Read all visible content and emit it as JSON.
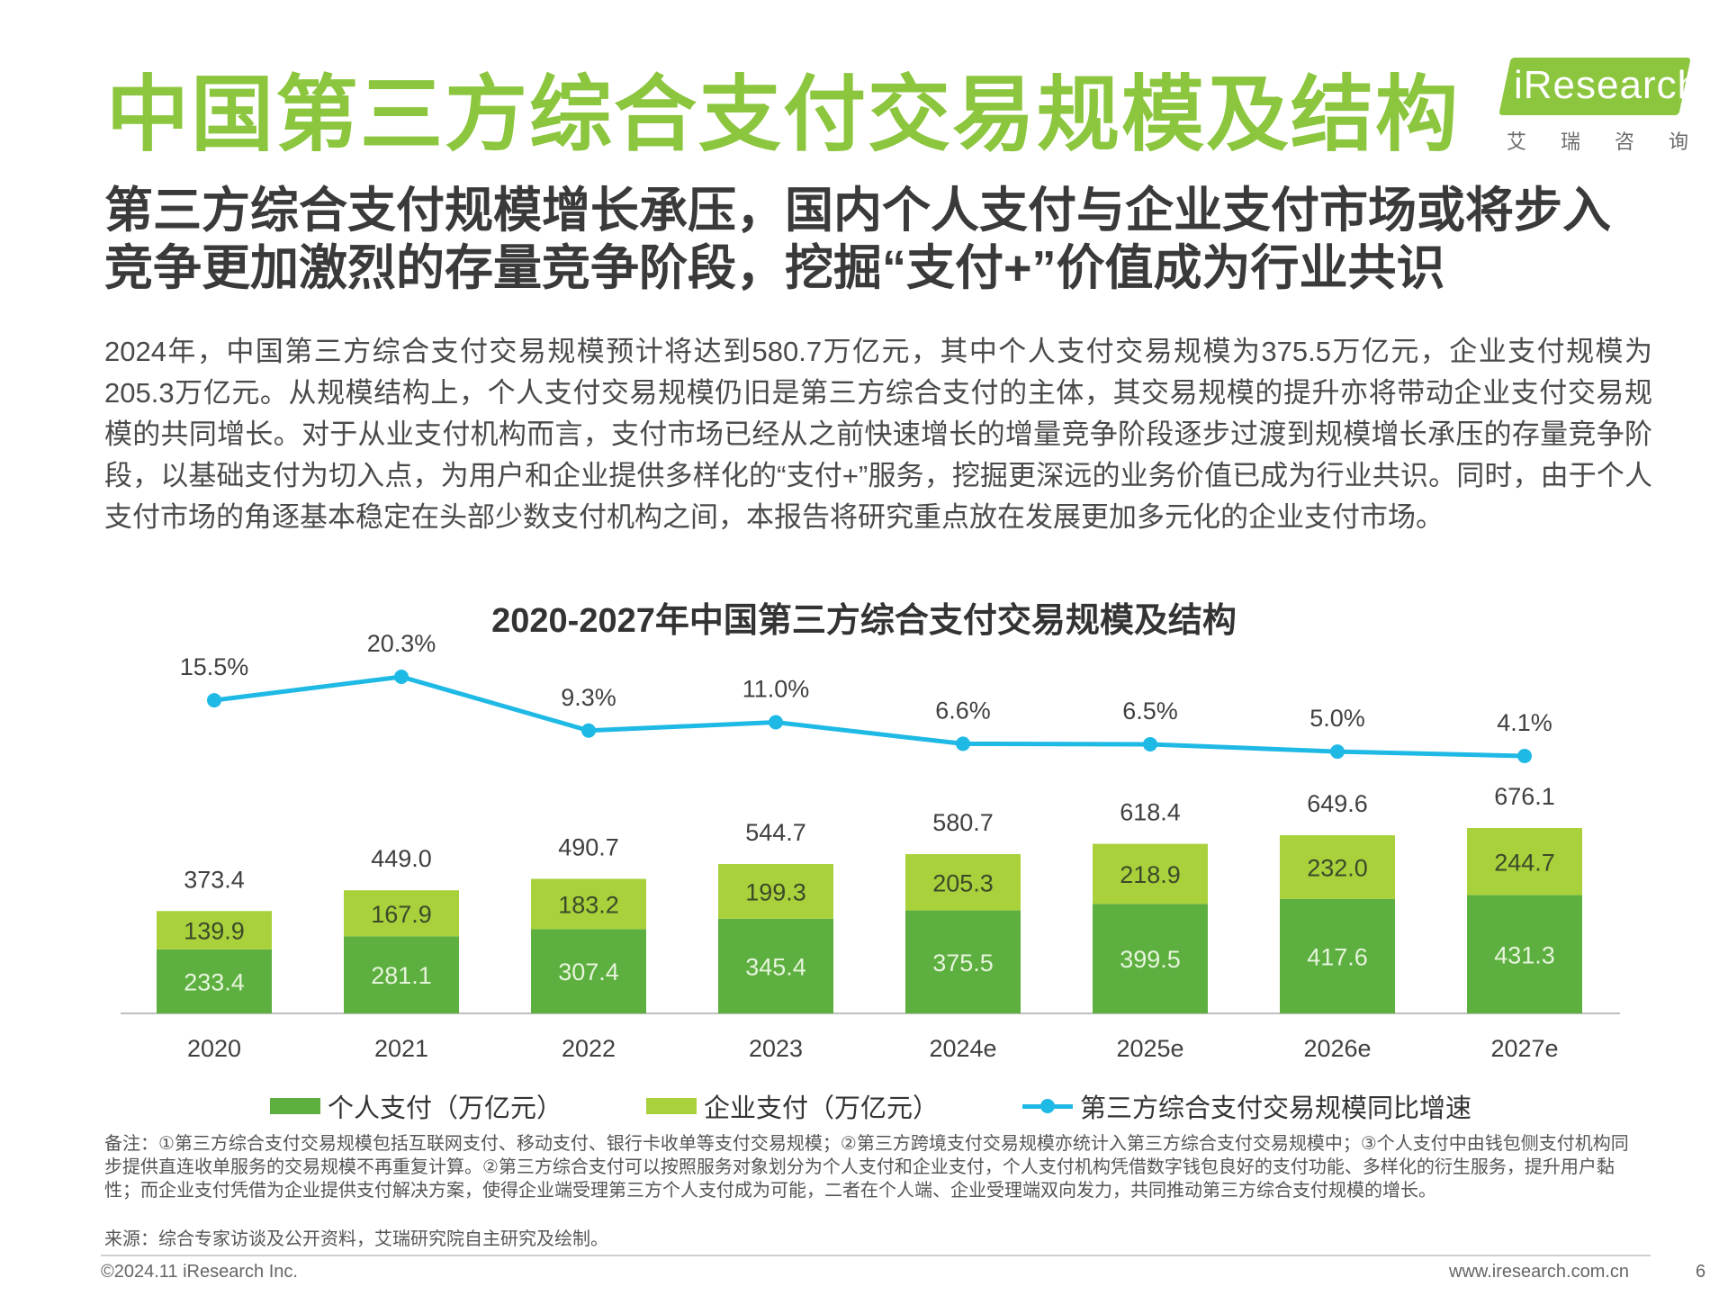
{
  "header": {
    "title": "中国第三方综合支付交易规模及结构",
    "logo_text": "iResearch",
    "logo_subtext": "艾瑞咨询"
  },
  "subtitle": "第三方综合支付规模增长承压，国内个人支付与企业支付市场或将步入竞争更加激烈的存量竞争阶段，挖掘“支付+”价值成为行业共识",
  "body_text": "2024年，中国第三方综合支付交易规模预计将达到580.7万亿元，其中个人支付交易规模为375.5万亿元，企业支付规模为205.3万亿元。从规模结构上，个人支付交易规模仍旧是第三方综合支付的主体，其交易规模的提升亦将带动企业支付交易规模的共同增长。对于从业支付机构而言，支付市场已经从之前快速增长的增量竞争阶段逐步过渡到规模增长承压的存量竞争阶段，以基础支付为切入点，为用户和企业提供多样化的“支付+”服务，挖掘更深远的业务价值已成为行业共识。同时，由于个人支付市场的角逐基本稳定在头部少数支付机构之间，本报告将研究重点放在发展更加多元化的企业支付市场。",
  "colors": {
    "title_green": "#8cc63f",
    "personal": "#5daf3f",
    "enterprise": "#a8d13b",
    "growth_line": "#1fb9e5"
  },
  "chart_data": {
    "type": "bar",
    "stacked": true,
    "title": "2020-2027年中国第三方综合支付交易规模及结构",
    "categories": [
      "2020",
      "2021",
      "2022",
      "2023",
      "2024e",
      "2025e",
      "2026e",
      "2027e"
    ],
    "series": [
      {
        "name": "个人支付（万亿元）",
        "type": "bar",
        "values": [
          233.4,
          281.1,
          307.4,
          345.4,
          375.5,
          399.5,
          417.6,
          431.3
        ]
      },
      {
        "name": "企业支付（万亿元）",
        "type": "bar",
        "values": [
          139.9,
          167.9,
          183.2,
          199.3,
          205.3,
          218.9,
          232.0,
          244.7
        ]
      },
      {
        "name": "第三方综合支付交易规模同比增速",
        "type": "line",
        "values": [
          15.5,
          20.3,
          9.3,
          11.0,
          6.6,
          6.5,
          5.0,
          4.1
        ],
        "labels": [
          "15.5%",
          "20.3%",
          "9.3%",
          "11.0%",
          "6.6%",
          "6.5%",
          "5.0%",
          "4.1%"
        ]
      }
    ],
    "totals": [
      "373.4",
      "449.0",
      "490.7",
      "544.7",
      "580.7",
      "618.4",
      "649.6",
      "676.1"
    ],
    "personal_labels": [
      "233.4",
      "281.1",
      "307.4",
      "345.4",
      "375.5",
      "399.5",
      "417.6",
      "431.3"
    ],
    "enterprise_labels": [
      "139.9",
      "167.9",
      "183.2",
      "199.3",
      "205.3",
      "218.9",
      "232.0",
      "244.7"
    ],
    "ylim": [
      0,
      676.1
    ],
    "growth_ylim": [
      4.1,
      20.3
    ],
    "grid": false,
    "legend_position": "bottom"
  },
  "notes": "备注：①第三方综合支付交易规模包括互联网支付、移动支付、银行卡收单等支付交易规模；②第三方跨境支付交易规模亦统计入第三方综合支付交易规模中；③个人支付中由钱包侧支付机构同步提供直连收单服务的交易规模不再重复计算。②第三方综合支付可以按照服务对象划分为个人支付和企业支付，个人支付机构凭借数字钱包良好的支付功能、多样化的衍生服务，提升用户黏性；而企业支付凭借为企业提供支付解决方案，使得企业端受理第三方个人支付成为可能，二者在个人端、企业受理端双向发力，共同推动第三方综合支付规模的增长。",
  "source": "来源：综合专家访谈及公开资料，艾瑞研究院自主研究及绘制。",
  "footer": {
    "copyright": "©2024.11 iResearch Inc.",
    "website": "www.iresearch.com.cn",
    "page_number": "6"
  }
}
